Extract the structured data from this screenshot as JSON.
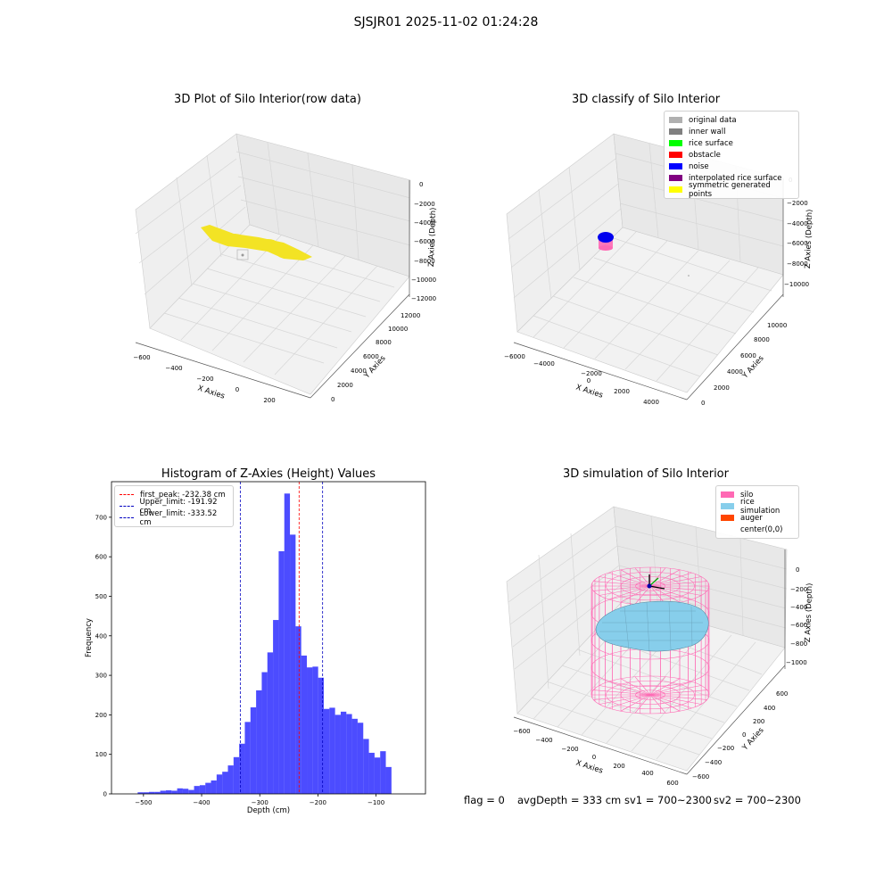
{
  "suptitle": "SJSJR01 2025-11-02 01:24:28",
  "plot1": {
    "title": "3D Plot of Silo Interior(row data)",
    "xlabel": "X Axies",
    "ylabel": "Y Axies",
    "zlabel": "Z Axies (Depth)",
    "xticks": [
      "−600",
      "−400",
      "−200",
      "0",
      "200"
    ],
    "yticks": [
      "0",
      "2000",
      "4000",
      "6000",
      "8000",
      "10000",
      "12000"
    ],
    "zticks": [
      "0",
      "−2000",
      "−4000",
      "−6000",
      "−8000",
      "−10000",
      "−12000"
    ],
    "point_color": "#f5e626"
  },
  "plot2": {
    "title": "3D classify of Silo Interior",
    "xlabel": "X Axies",
    "ylabel": "Y Axies",
    "zlabel": "Z Axies (Depth)",
    "xticks": [
      "−6000",
      "−4000",
      "−2000",
      "0",
      "2000",
      "4000"
    ],
    "yticks": [
      "0",
      "2000",
      "4000",
      "6000",
      "8000",
      "10000"
    ],
    "zticks": [
      "0",
      "−2000",
      "−4000",
      "−6000",
      "−8000",
      "−10000"
    ],
    "legend": [
      {
        "label": "original data",
        "color": "#b0b0b0"
      },
      {
        "label": "inner wall",
        "color": "#808080"
      },
      {
        "label": "rice surface",
        "color": "#00ff00"
      },
      {
        "label": "obstacle",
        "color": "#ff0000"
      },
      {
        "label": "noise",
        "color": "#0000ff"
      },
      {
        "label": "interpolated rice surface",
        "color": "#800080"
      },
      {
        "label": "symmetric generated points",
        "color": "#ffff00"
      }
    ]
  },
  "plot3": {
    "chart_data": {
      "type": "bar",
      "title": "Histogram of Z-Axies (Height) Values",
      "xlabel": "Depth (cm)",
      "ylabel": "Frequency",
      "xlim": [
        -555,
        -15
      ],
      "ylim": [
        0,
        790
      ],
      "xticks": [
        -500,
        -400,
        -300,
        -200,
        -100
      ],
      "xtick_labels": [
        "−500",
        "−400",
        "−300",
        "−200",
        "−100"
      ],
      "yticks": [
        0,
        100,
        200,
        300,
        400,
        500,
        600,
        700
      ],
      "bin_start": -510,
      "bin_width": 9.7,
      "values": [
        4,
        4,
        5,
        5,
        8,
        9,
        8,
        14,
        13,
        10,
        20,
        22,
        28,
        34,
        49,
        56,
        72,
        93,
        127,
        182,
        219,
        262,
        308,
        358,
        440,
        614,
        760,
        656,
        424,
        350,
        320,
        322,
        294,
        215,
        218,
        200,
        208,
        202,
        190,
        180,
        139,
        104,
        92,
        108,
        68
      ],
      "bar_color": "#0000ff",
      "vlines": [
        {
          "label": "first_peak: -232.38 cm",
          "x": -232.38,
          "color": "#ff0000"
        },
        {
          "label": "Upper_limit: -191.92 cm",
          "x": -191.92,
          "color": "#0000c0"
        },
        {
          "label": "Lower_limit: -333.52 cm",
          "x": -333.52,
          "color": "#0000c0"
        }
      ],
      "legend_position": "upper left"
    }
  },
  "plot4": {
    "title": "3D simulation of Silo Interior",
    "xlabel": "X Axies",
    "ylabel": "Y Axies",
    "zlabel": "Z Axies (Depth)",
    "xticks": [
      "−600",
      "−400",
      "−200",
      "0",
      "200",
      "400",
      "600"
    ],
    "yticks": [
      "−600",
      "−400",
      "−200",
      "0",
      "200",
      "400",
      "600"
    ],
    "zticks": [
      "0",
      "−200",
      "−400",
      "−600",
      "−800",
      "−1000"
    ],
    "legend": [
      {
        "label": "silo",
        "color": "#ff69b4"
      },
      {
        "label": "rice simulation",
        "color": "#87ceeb"
      },
      {
        "label": "auger",
        "color": "#ff4500"
      },
      {
        "label": "center(0,0)",
        "color": ""
      }
    ]
  },
  "footer": {
    "flag": "flag = 0",
    "avg": "avgDepth = 333 cm",
    "sv1": "sv1 = 700~2300",
    "sv2": "sv2 = 700~2300"
  }
}
